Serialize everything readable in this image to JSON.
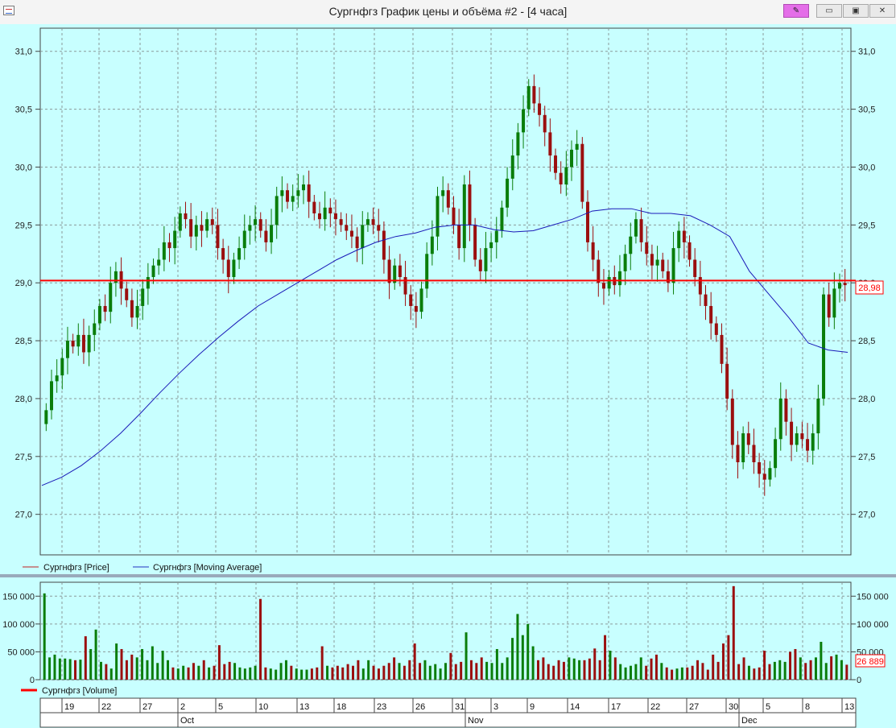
{
  "window": {
    "title": "Сургнфгз График цены и объёма #2 - [4 часа]",
    "pin_icon": "pin-icon",
    "minimize_icon": "minimize-icon",
    "maximize_icon": "maximize-icon",
    "close_icon": "close-icon"
  },
  "price_last_label": "28,98",
  "volume_last_label": "26 889",
  "chart_data": [
    {
      "type": "line",
      "chart_kind": "candlestick",
      "grid": true,
      "ylim": [
        26.65,
        31.2
      ],
      "ytick_labels": [
        "27,0",
        "27,5",
        "28,0",
        "28,5",
        "29,0",
        "29,5",
        "30,0",
        "30,5",
        "31,0"
      ],
      "yticks": [
        27.0,
        27.5,
        28.0,
        28.5,
        29.0,
        29.5,
        30.0,
        30.5,
        31.0
      ],
      "legend": [
        {
          "name": "Сургнфгз [Price]",
          "color": "#c02020"
        },
        {
          "name": "Сургнфгз [Moving Average]",
          "color": "#2030c0"
        }
      ],
      "horizontal_line": {
        "value": 29.02,
        "color": "#ff0000"
      },
      "colors": {
        "up": "#0a7d0a",
        "down": "#9b0f0f",
        "ma": "#1a1ab8"
      },
      "close": [
        27.9,
        28.15,
        28.2,
        28.35,
        28.5,
        28.45,
        28.55,
        28.4,
        28.55,
        28.65,
        28.8,
        28.75,
        29.0,
        29.1,
        28.95,
        28.85,
        28.7,
        28.8,
        28.95,
        29.05,
        29.15,
        29.2,
        29.35,
        29.3,
        29.45,
        29.6,
        29.55,
        29.4,
        29.5,
        29.45,
        29.55,
        29.5,
        29.3,
        29.2,
        29.05,
        29.2,
        29.3,
        29.45,
        29.5,
        29.55,
        29.45,
        29.35,
        29.5,
        29.75,
        29.8,
        29.7,
        29.75,
        29.8,
        29.85,
        29.7,
        29.6,
        29.55,
        29.65,
        29.6,
        29.55,
        29.5,
        29.45,
        29.4,
        29.3,
        29.5,
        29.55,
        29.5,
        29.45,
        29.2,
        29.0,
        29.15,
        29.05,
        28.9,
        28.8,
        28.75,
        28.95,
        29.25,
        29.4,
        29.75,
        29.8,
        29.65,
        29.5,
        29.3,
        29.85,
        29.5,
        29.2,
        29.1,
        29.3,
        29.35,
        29.45,
        29.65,
        29.9,
        30.1,
        30.3,
        30.5,
        30.7,
        30.55,
        30.45,
        30.3,
        30.1,
        29.95,
        29.85,
        30.0,
        30.15,
        30.2,
        29.7,
        29.35,
        29.2,
        29.0,
        28.95,
        29.05,
        28.98,
        29.1,
        29.25,
        29.4,
        29.55,
        29.35,
        29.25,
        29.15,
        29.2,
        29.1,
        29.0,
        29.3,
        29.45,
        29.35,
        29.2,
        29.05,
        28.9,
        28.8,
        28.65,
        28.55,
        28.3,
        28.0,
        27.6,
        27.45,
        27.7,
        27.6,
        27.45,
        27.35,
        27.3,
        27.4,
        27.65,
        28.0,
        27.8,
        27.6,
        27.7,
        27.65,
        27.55,
        27.7,
        28.0,
        28.9,
        28.7,
        28.95,
        29.0,
        28.98
      ],
      "ma": [
        27.25,
        27.32,
        27.42,
        27.55,
        27.7,
        27.87,
        28.05,
        28.22,
        28.38,
        28.53,
        28.67,
        28.8,
        28.9,
        29.0,
        29.1,
        29.2,
        29.28,
        29.35,
        29.4,
        29.43,
        29.48,
        29.5,
        29.5,
        29.46,
        29.44,
        29.45,
        29.5,
        29.55,
        29.62,
        29.64,
        29.64,
        29.6,
        29.6,
        29.58,
        29.5,
        29.4,
        29.1,
        28.9,
        28.7,
        28.48,
        28.42,
        28.4
      ]
    },
    {
      "type": "bar",
      "ylim": [
        0,
        175000
      ],
      "ytick_labels": [
        "0",
        "50 000",
        "100 000",
        "150 000"
      ],
      "yticks": [
        0,
        50000,
        100000,
        150000
      ],
      "legend": [
        {
          "name": "Сургнфгз [Volume]",
          "color": "#ff0000"
        }
      ],
      "values": [
        155000,
        40000,
        45000,
        38000,
        38000,
        37000,
        35000,
        36000,
        78000,
        55000,
        90000,
        32000,
        28000,
        20000,
        65000,
        55000,
        35000,
        45000,
        40000,
        55000,
        35000,
        60000,
        30000,
        52000,
        35000,
        22000,
        20000,
        25000,
        22000,
        30000,
        25000,
        35000,
        22000,
        25000,
        62000,
        28000,
        32000,
        30000,
        22000,
        20000,
        22000,
        25000,
        145000,
        22000,
        20000,
        18000,
        30000,
        35000,
        25000,
        20000,
        18000,
        18000,
        20000,
        22000,
        60000,
        25000,
        22000,
        25000,
        22000,
        28000,
        25000,
        35000,
        20000,
        35000,
        25000,
        20000,
        25000,
        30000,
        40000,
        30000,
        25000,
        35000,
        65000,
        30000,
        35000,
        25000,
        28000,
        20000,
        30000,
        48000,
        28000,
        32000,
        85000,
        35000,
        30000,
        40000,
        32000,
        30000,
        55000,
        30000,
        40000,
        75000,
        118000,
        80000,
        100000,
        60000,
        35000,
        40000,
        28000,
        25000,
        35000,
        32000,
        40000,
        38000,
        35000,
        35000,
        38000,
        56000,
        35000,
        80000,
        52000,
        40000,
        28000,
        22000,
        25000,
        28000,
        40000,
        25000,
        38000,
        45000,
        30000,
        22000,
        18000,
        20000,
        22000,
        22000,
        25000,
        35000,
        30000,
        18000,
        45000,
        32000,
        65000,
        80000,
        168000,
        28000,
        40000,
        25000,
        20000,
        22000,
        52000,
        28000,
        32000,
        35000,
        32000,
        50000,
        55000,
        40000,
        30000,
        35000,
        40000,
        68000,
        30000,
        42000,
        45000,
        35000,
        26889
      ],
      "last_value": 26889
    }
  ],
  "time_axis": {
    "days": [
      "19",
      "22",
      "27",
      "2",
      "5",
      "10",
      "13",
      "18",
      "23",
      "26",
      "31",
      "3",
      "9",
      "14",
      "17",
      "22",
      "27",
      "30",
      "5",
      "8",
      "13"
    ],
    "months": [
      "Oct",
      "Nov",
      "Dec"
    ]
  }
}
